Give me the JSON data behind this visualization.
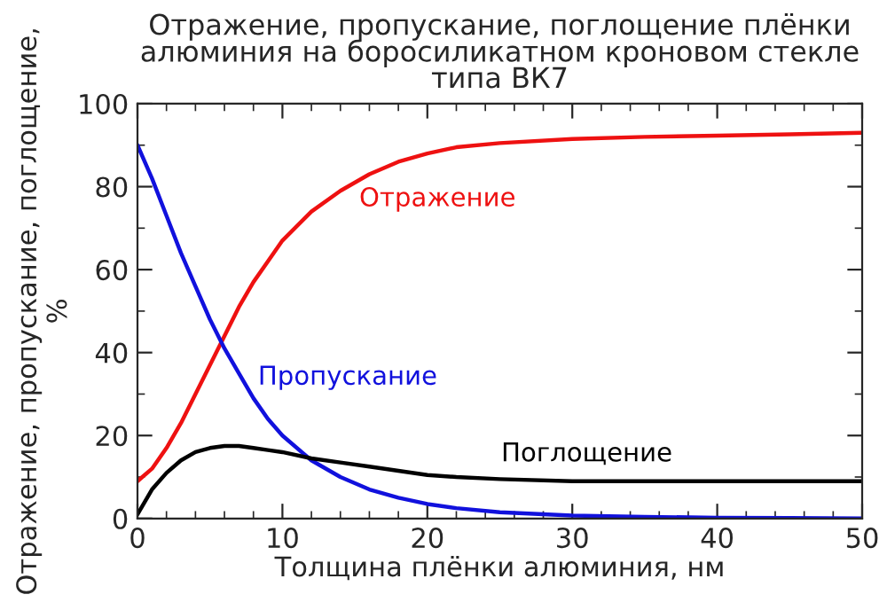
{
  "chart_data": {
    "type": "line",
    "title": "Отражение, пропускание, поглощение плёнки алюминия на боросиликатном кроновом стекле типа ВК7",
    "xlabel": "Толщина плёнки алюминия, нм",
    "ylabel": "Отражение, пропускание, поглощение, %",
    "x": [
      0,
      1,
      2,
      3,
      4,
      5,
      6,
      7,
      8,
      9,
      10,
      12,
      14,
      16,
      18,
      20,
      22,
      25,
      30,
      35,
      40,
      45,
      50
    ],
    "series": [
      {
        "name": "Отражение",
        "color": "#ee1111",
        "values": [
          9,
          12,
          17,
          23,
          30,
          37,
          44,
          51,
          57,
          62,
          67,
          74,
          79,
          83,
          86,
          88,
          89.5,
          90.5,
          91.5,
          92,
          92.3,
          92.6,
          93
        ]
      },
      {
        "name": "Пропускание",
        "color": "#1111dd",
        "values": [
          90,
          82,
          73,
          64,
          56,
          48,
          41,
          35,
          29,
          24,
          20,
          14,
          10,
          7,
          5,
          3.5,
          2.5,
          1.5,
          0.7,
          0.4,
          0.2,
          0.1,
          0
        ]
      },
      {
        "name": "Поглощение",
        "color": "#000000",
        "values": [
          1,
          7,
          11,
          14,
          16,
          17,
          17.5,
          17.5,
          17,
          16.5,
          16,
          14.5,
          13.5,
          12.5,
          11.5,
          10.5,
          10,
          9.5,
          9,
          9,
          9,
          9,
          9
        ]
      }
    ],
    "xlim": [
      0,
      50
    ],
    "xticks": [
      0,
      10,
      20,
      30,
      40,
      50
    ],
    "ylim": [
      0,
      100
    ],
    "yticks": [
      0,
      20,
      40,
      60,
      80,
      100
    ],
    "grid": false,
    "legend": false
  }
}
